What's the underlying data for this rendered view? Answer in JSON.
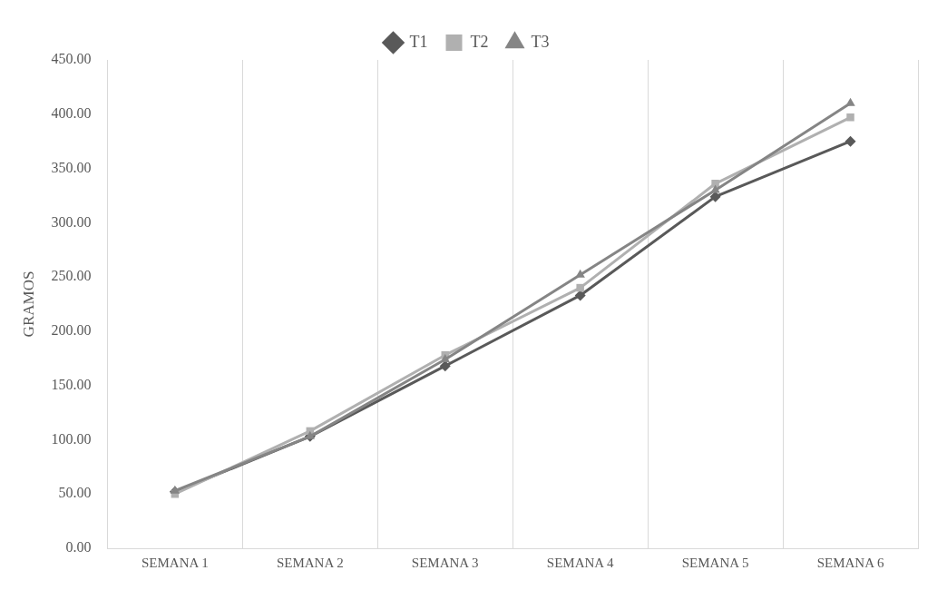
{
  "chart_data": {
    "type": "line",
    "ylabel": "GRAMOS",
    "categories": [
      "SEMANA 1",
      "SEMANA 2",
      "SEMANA 3",
      "SEMANA 4",
      "SEMANA 5",
      "SEMANA 6"
    ],
    "series": [
      {
        "name": "T1",
        "color": "#595959",
        "marker": "diamond",
        "values": [
          52,
          103,
          168,
          233,
          324,
          375
        ]
      },
      {
        "name": "T2",
        "color": "#b0b0b0",
        "marker": "square",
        "values": [
          50,
          108,
          178,
          240,
          336,
          397
        ]
      },
      {
        "name": "T3",
        "color": "#858585",
        "marker": "triangle",
        "values": [
          53,
          103,
          174,
          252,
          330,
          410
        ]
      }
    ],
    "ylim": [
      0,
      450
    ],
    "yticks": [
      {
        "value": 0,
        "label": "0.00"
      },
      {
        "value": 50,
        "label": "50.00"
      },
      {
        "value": 100,
        "label": "100.00"
      },
      {
        "value": 150,
        "label": "150.00"
      },
      {
        "value": 200,
        "label": "200.00"
      },
      {
        "value": 250,
        "label": "250.00"
      },
      {
        "value": 300,
        "label": "300.00"
      },
      {
        "value": 350,
        "label": "350.00"
      },
      {
        "value": 400,
        "label": "400.00"
      },
      {
        "value": 450,
        "label": "450.00"
      }
    ],
    "grid": "x",
    "legend": "top",
    "line_style": "solid"
  }
}
